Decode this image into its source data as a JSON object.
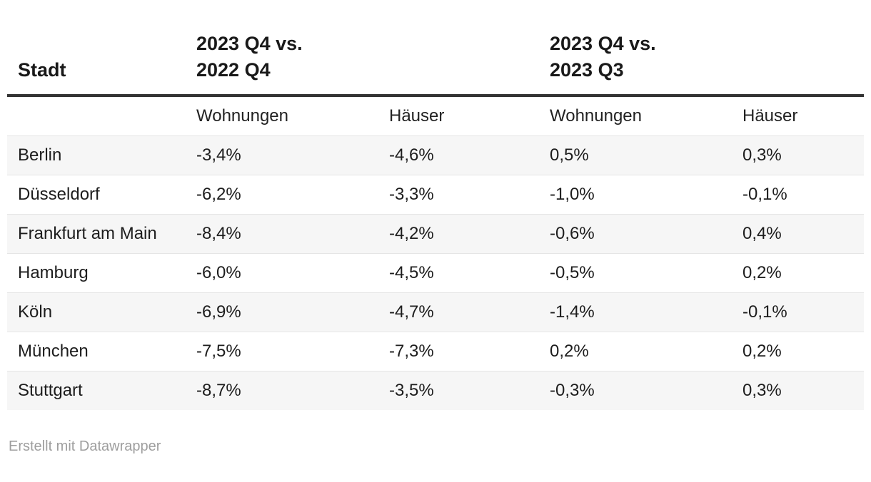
{
  "chart_data": {
    "type": "table",
    "col_header": "Stadt",
    "group_headers": [
      "2023 Q4 vs.\n2022 Q4",
      "2023 Q4 vs.\n2023 Q3"
    ],
    "sub_headers": [
      "Wohnungen",
      "Häuser",
      "Wohnungen",
      "Häuser"
    ],
    "rows": [
      {
        "city": "Berlin",
        "values": [
          "-3,4%",
          "-4,6%",
          "0,5%",
          "0,3%"
        ]
      },
      {
        "city": "Düsseldorf",
        "values": [
          "-6,2%",
          "-3,3%",
          "-1,0%",
          "-0,1%"
        ]
      },
      {
        "city": "Frankfurt am Main",
        "values": [
          "-8,4%",
          "-4,2%",
          "-0,6%",
          "0,4%"
        ]
      },
      {
        "city": "Hamburg",
        "values": [
          "-6,0%",
          "-4,5%",
          "-0,5%",
          "0,2%"
        ]
      },
      {
        "city": "Köln",
        "values": [
          "-6,9%",
          "-4,7%",
          "-1,4%",
          "-0,1%"
        ]
      },
      {
        "city": "München",
        "values": [
          "-7,5%",
          "-7,3%",
          "0,2%",
          "0,2%"
        ]
      },
      {
        "city": "Stuttgart",
        "values": [
          "-8,7%",
          "-3,5%",
          "-0,3%",
          "0,3%"
        ]
      }
    ],
    "layout_hints": {
      "zebra_striping": "odd rows shaded",
      "header_rule": "thick dark line under group header row"
    }
  },
  "colors": {
    "header_text": "#191919",
    "body_text": "#1d1d1d",
    "header_rule": "#333333",
    "zebra_row": "#f6f6f6",
    "row_border": "#e5e5e5",
    "footer_text": "#9e9e9e",
    "background": "#ffffff"
  },
  "footer": {
    "attribution": "Erstellt mit Datawrapper"
  }
}
